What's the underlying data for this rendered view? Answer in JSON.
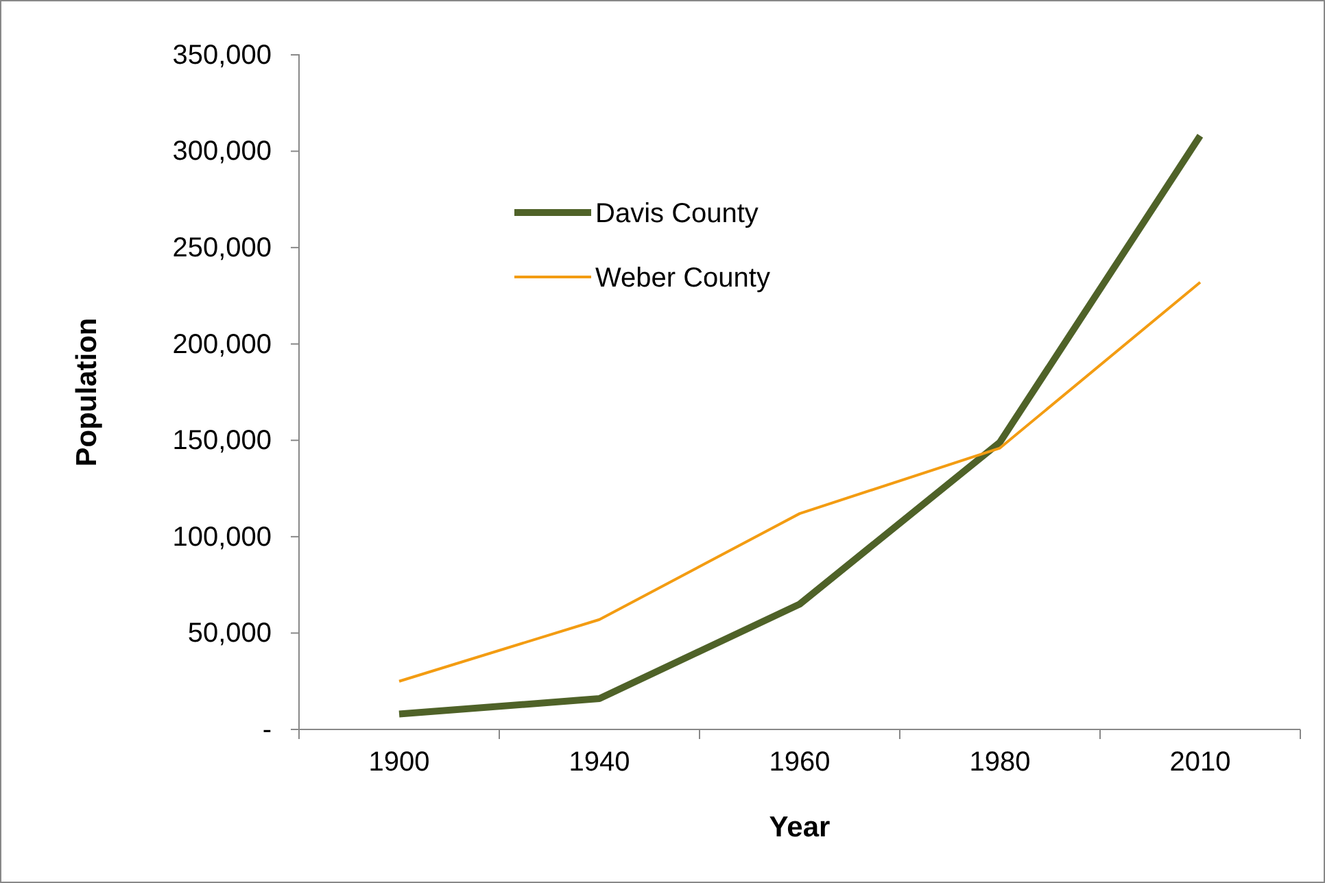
{
  "chart_data": {
    "type": "line",
    "xlabel": "Year",
    "ylabel": "Population",
    "categories": [
      "1900",
      "1940",
      "1960",
      "1980",
      "2010"
    ],
    "series": [
      {
        "name": "Davis County",
        "color": "#4f6228",
        "values": [
          8000,
          16000,
          65000,
          149000,
          308000
        ]
      },
      {
        "name": "Weber County",
        "color": "#f39c12",
        "values": [
          25000,
          57000,
          112000,
          146000,
          232000
        ]
      }
    ],
    "ylim": [
      0,
      350000
    ],
    "yticks": [
      {
        "value": 0,
        "label": "-"
      },
      {
        "value": 50000,
        "label": "50,000"
      },
      {
        "value": 100000,
        "label": "100,000"
      },
      {
        "value": 150000,
        "label": "150,000"
      },
      {
        "value": 200000,
        "label": "200,000"
      },
      {
        "value": 250000,
        "label": "250,000"
      },
      {
        "value": 300000,
        "label": "300,000"
      },
      {
        "value": 350000,
        "label": "350,000"
      }
    ],
    "grid": false,
    "legend": "top left",
    "marker": "none",
    "line_style": "solid"
  }
}
